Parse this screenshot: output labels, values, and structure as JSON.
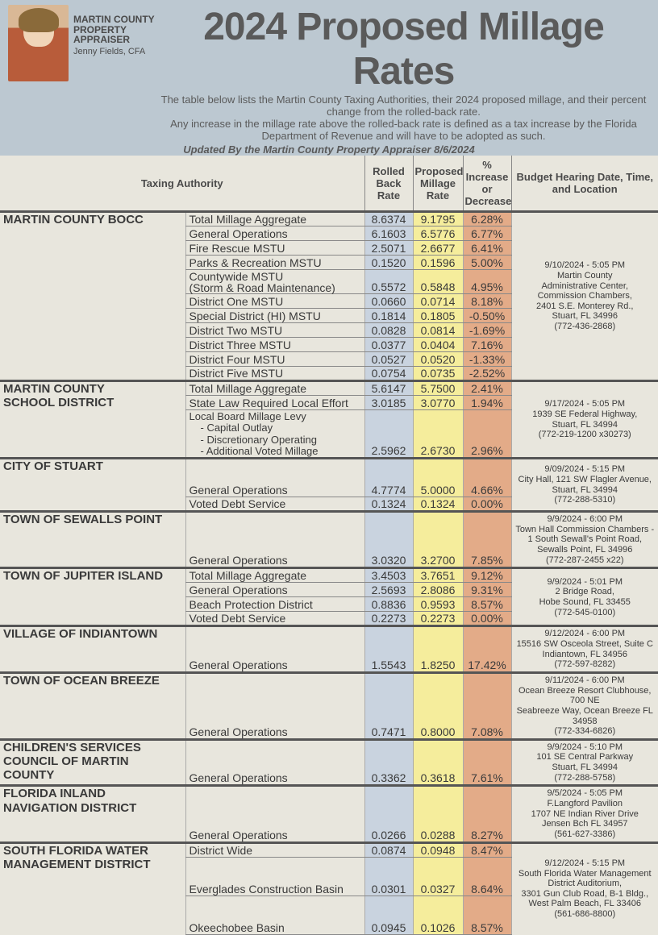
{
  "header": {
    "org_line1": "MARTIN COUNTY",
    "org_line2": "PROPERTY APPRAISER",
    "name": "Jenny Fields, CFA",
    "title": "2024 Proposed Millage Rates",
    "sub1": "The table below lists the Martin County Taxing Authorities, their 2024 proposed millage, and their percent change from the rolled-back rate.",
    "sub2": "Any increase in the millage rate above the rolled-back rate is defined as a tax increase by the Florida Department of Revenue and will have to be adopted as such.",
    "updated": "Updated By the Martin County Property Appraiser 8/6/2024"
  },
  "columns": {
    "taxing_authority": "Taxing Authority",
    "rolled": "Rolled Back Rate",
    "proposed": "Proposed Millage Rate",
    "pct": "% Increase or Decrease",
    "hearing": "Budget Hearing Date, Time, and Location"
  },
  "groups": [
    {
      "authority": "MARTIN COUNTY BOCC",
      "hearing": "9/10/2024 - 5:05 PM\nMartin County\nAdministrative Center,\nCommission Chambers,\n2401 S.E. Monterey Rd.,\nStuart, FL 34996\n(772-436-2868)",
      "rows": [
        {
          "item": "Total Millage Aggregate",
          "rolled": "8.6374",
          "proposed": "9.1795",
          "pct": "6.28%"
        },
        {
          "item": "General Operations",
          "rolled": "6.1603",
          "proposed": "6.5776",
          "pct": "6.77%"
        },
        {
          "item": "Fire Rescue MSTU",
          "rolled": "2.5071",
          "proposed": "2.6677",
          "pct": "6.41%"
        },
        {
          "item": "Parks & Recreation MSTU",
          "rolled": "0.1520",
          "proposed": "0.1596",
          "pct": "5.00%"
        },
        {
          "item": "Countywide MSTU\n(Storm & Road Maintenance)",
          "rolled": "0.5572",
          "proposed": "0.5848",
          "pct": "4.95%"
        },
        {
          "item": "District One MSTU",
          "rolled": "0.0660",
          "proposed": "0.0714",
          "pct": "8.18%"
        },
        {
          "item": "Special District (HI) MSTU",
          "rolled": "0.1814",
          "proposed": "0.1805",
          "pct": "-0.50%"
        },
        {
          "item": "District Two MSTU",
          "rolled": "0.0828",
          "proposed": "0.0814",
          "pct": "-1.69%"
        },
        {
          "item": "District Three MSTU",
          "rolled": "0.0377",
          "proposed": "0.0404",
          "pct": "7.16%"
        },
        {
          "item": "District Four MSTU",
          "rolled": "0.0527",
          "proposed": "0.0520",
          "pct": "-1.33%"
        },
        {
          "item": "District Five MSTU",
          "rolled": "0.0754",
          "proposed": "0.0735",
          "pct": "-2.52%"
        }
      ]
    },
    {
      "authority": "MARTIN COUNTY\nSCHOOL DISTRICT",
      "hearing": "9/17/2024 - 5:05 PM\n1939 SE Federal Highway,\nStuart, FL 34994\n(772-219-1200 x30273)",
      "rows": [
        {
          "item": "Total Millage Aggregate",
          "rolled": "5.6147",
          "proposed": "5.7500",
          "pct": "2.41%"
        },
        {
          "item": "State Law Required Local Effort",
          "rolled": "3.0185",
          "proposed": "3.0770",
          "pct": "1.94%"
        },
        {
          "item": "Local Board Millage Levy",
          "sub": [
            "-     Capital Outlay",
            "-     Discretionary Operating",
            "-     Additional Voted Millage"
          ],
          "rolled": "2.5962",
          "proposed": "2.6730",
          "pct": "2.96%"
        }
      ]
    },
    {
      "authority": "CITY OF STUART",
      "hearing": "9/09/2024 - 5:15 PM\nCity Hall, 121 SW Flagler Avenue,\nStuart, FL 34994\n(772-288-5310)",
      "rows": [
        {
          "item": "General Operations",
          "rolled": "4.7774",
          "proposed": "5.0000",
          "pct": "4.66%",
          "tall": true
        },
        {
          "item": "Voted Debt Service",
          "rolled": "0.1324",
          "proposed": "0.1324",
          "pct": "0.00%"
        }
      ]
    },
    {
      "authority": "TOWN OF SEWALLS POINT",
      "hearing": "9/9/2024 - 6:00 PM\nTown Hall Commission Chambers -\n1 South Sewall's Point Road,\nSewalls Point, FL 34996\n(772-287-2455 x22)",
      "rows": [
        {
          "item": "General Operations",
          "rolled": "3.0320",
          "proposed": "3.2700",
          "pct": "7.85%",
          "tall": true,
          "big": true
        }
      ]
    },
    {
      "authority": "TOWN OF JUPITER ISLAND",
      "hearing": "9/9/2024 - 5:01 PM\n2 Bridge Road,\nHobe Sound, FL 33455\n(772-545-0100)",
      "rows": [
        {
          "item": "Total Millage Aggregate",
          "rolled": "3.4503",
          "proposed": "3.7651",
          "pct": "9.12%"
        },
        {
          "item": "General Operations",
          "rolled": "2.5693",
          "proposed": "2.8086",
          "pct": "9.31%"
        },
        {
          "item": "Beach Protection District",
          "rolled": "0.8836",
          "proposed": "0.9593",
          "pct": "8.57%"
        },
        {
          "item": "Voted Debt Service",
          "rolled": "0.2273",
          "proposed": "0.2273",
          "pct": "0.00%"
        }
      ]
    },
    {
      "authority": "VILLAGE OF INDIANTOWN",
      "hearing": "9/12/2024 - 6:00 PM\n15516 SW Osceola Street, Suite C\nIndiantown, FL 34956\n(772-597-8282)",
      "rows": [
        {
          "item": "General Operations",
          "rolled": "1.5543",
          "proposed": "1.8250",
          "pct": "17.42%",
          "tall": true
        }
      ]
    },
    {
      "authority": "TOWN OF OCEAN BREEZE",
      "hearing": "9/11/2024 - 6:00 PM\nOcean Breeze Resort Clubhouse, 700 NE\nSeabreeze Way, Ocean Breeze FL 34958\n(772-334-6826)",
      "rows": [
        {
          "item": "General Operations",
          "rolled": "0.7471",
          "proposed": "0.8000",
          "pct": "7.08%",
          "tall": true
        }
      ]
    },
    {
      "authority": "CHILDREN'S SERVICES\nCOUNCIL OF MARTIN COUNTY",
      "hearing": "9/9/2024 - 5:10 PM\n101 SE Central Parkway\nStuart, FL 34994\n(772-288-5758)",
      "rows": [
        {
          "item": "General Operations",
          "rolled": "0.3362",
          "proposed": "0.3618",
          "pct": "7.61%",
          "tall": true
        }
      ]
    },
    {
      "authority": "FLORIDA INLAND\nNAVIGATION DISTRICT",
      "hearing": "9/5/2024 - 5:05 PM\nF.Langford Pavilion\n1707 NE Indian River Drive\nJensen Bch FL 34957\n(561-627-3386)",
      "rows": [
        {
          "item": "General Operations",
          "rolled": "0.0266",
          "proposed": "0.0288",
          "pct": "8.27%",
          "tall": true
        }
      ]
    },
    {
      "authority": "SOUTH FLORIDA WATER\nMANAGEMENT DISTRICT",
      "hearing": "9/12/2024 - 5:15 PM\nSouth Florida Water Management\nDistrict Auditorium,\n3301 Gun Club Road, B-1 Bldg.,\nWest Palm Beach, FL 33406\n(561-686-8800)",
      "rows": [
        {
          "item": "District Wide",
          "rolled": "0.0874",
          "proposed": "0.0948",
          "pct": "8.47%"
        },
        {
          "item": "Everglades Construction Basin",
          "rolled": "0.0301",
          "proposed": "0.0327",
          "pct": "8.64%",
          "tall": true
        },
        {
          "item": "Okeechobee Basin",
          "rolled": "0.0945",
          "proposed": "0.1026",
          "pct": "8.57%",
          "tall": true
        }
      ]
    }
  ]
}
